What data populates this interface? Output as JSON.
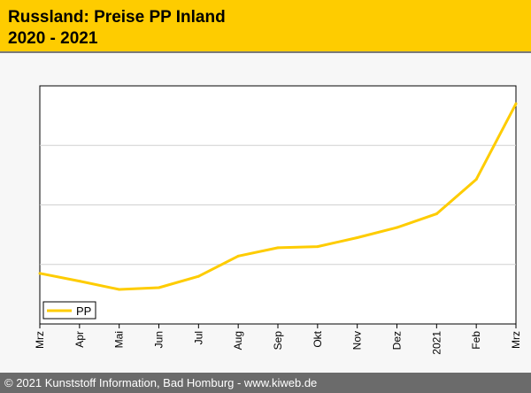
{
  "header": {
    "title_line1": "Russland: Preise PP Inland",
    "title_line2": "2020 - 2021"
  },
  "footer": {
    "text": "© 2021 Kunststoff Information, Bad Homburg - www.kiweb.de"
  },
  "colors": {
    "header_bg": "#fecc00",
    "series_line": "#fecc00",
    "grid": "#d0d0d0",
    "footer_bg": "#6b6b6b"
  },
  "chart_data": {
    "type": "line",
    "title": "Russland: Preise PP Inland",
    "subtitle": "2020 - 2021",
    "xlabel": "",
    "ylabel": "",
    "categories": [
      "Mrz",
      "Apr",
      "Mai",
      "Jun",
      "Jul",
      "Aug",
      "Sep",
      "Okt",
      "Nov",
      "Dez",
      "2021",
      "Feb",
      "Mrz"
    ],
    "series": [
      {
        "name": "PP",
        "values": [
          0.85,
          0.72,
          0.58,
          0.61,
          0.8,
          1.14,
          1.28,
          1.3,
          1.45,
          1.62,
          1.85,
          2.43,
          3.7
        ]
      }
    ],
    "ylim": [
      0,
      4
    ],
    "y_gridlines": [
      1,
      2,
      3
    ],
    "y_tick_labels_shown": false,
    "grid": true,
    "legend_position": "bottom-left"
  }
}
